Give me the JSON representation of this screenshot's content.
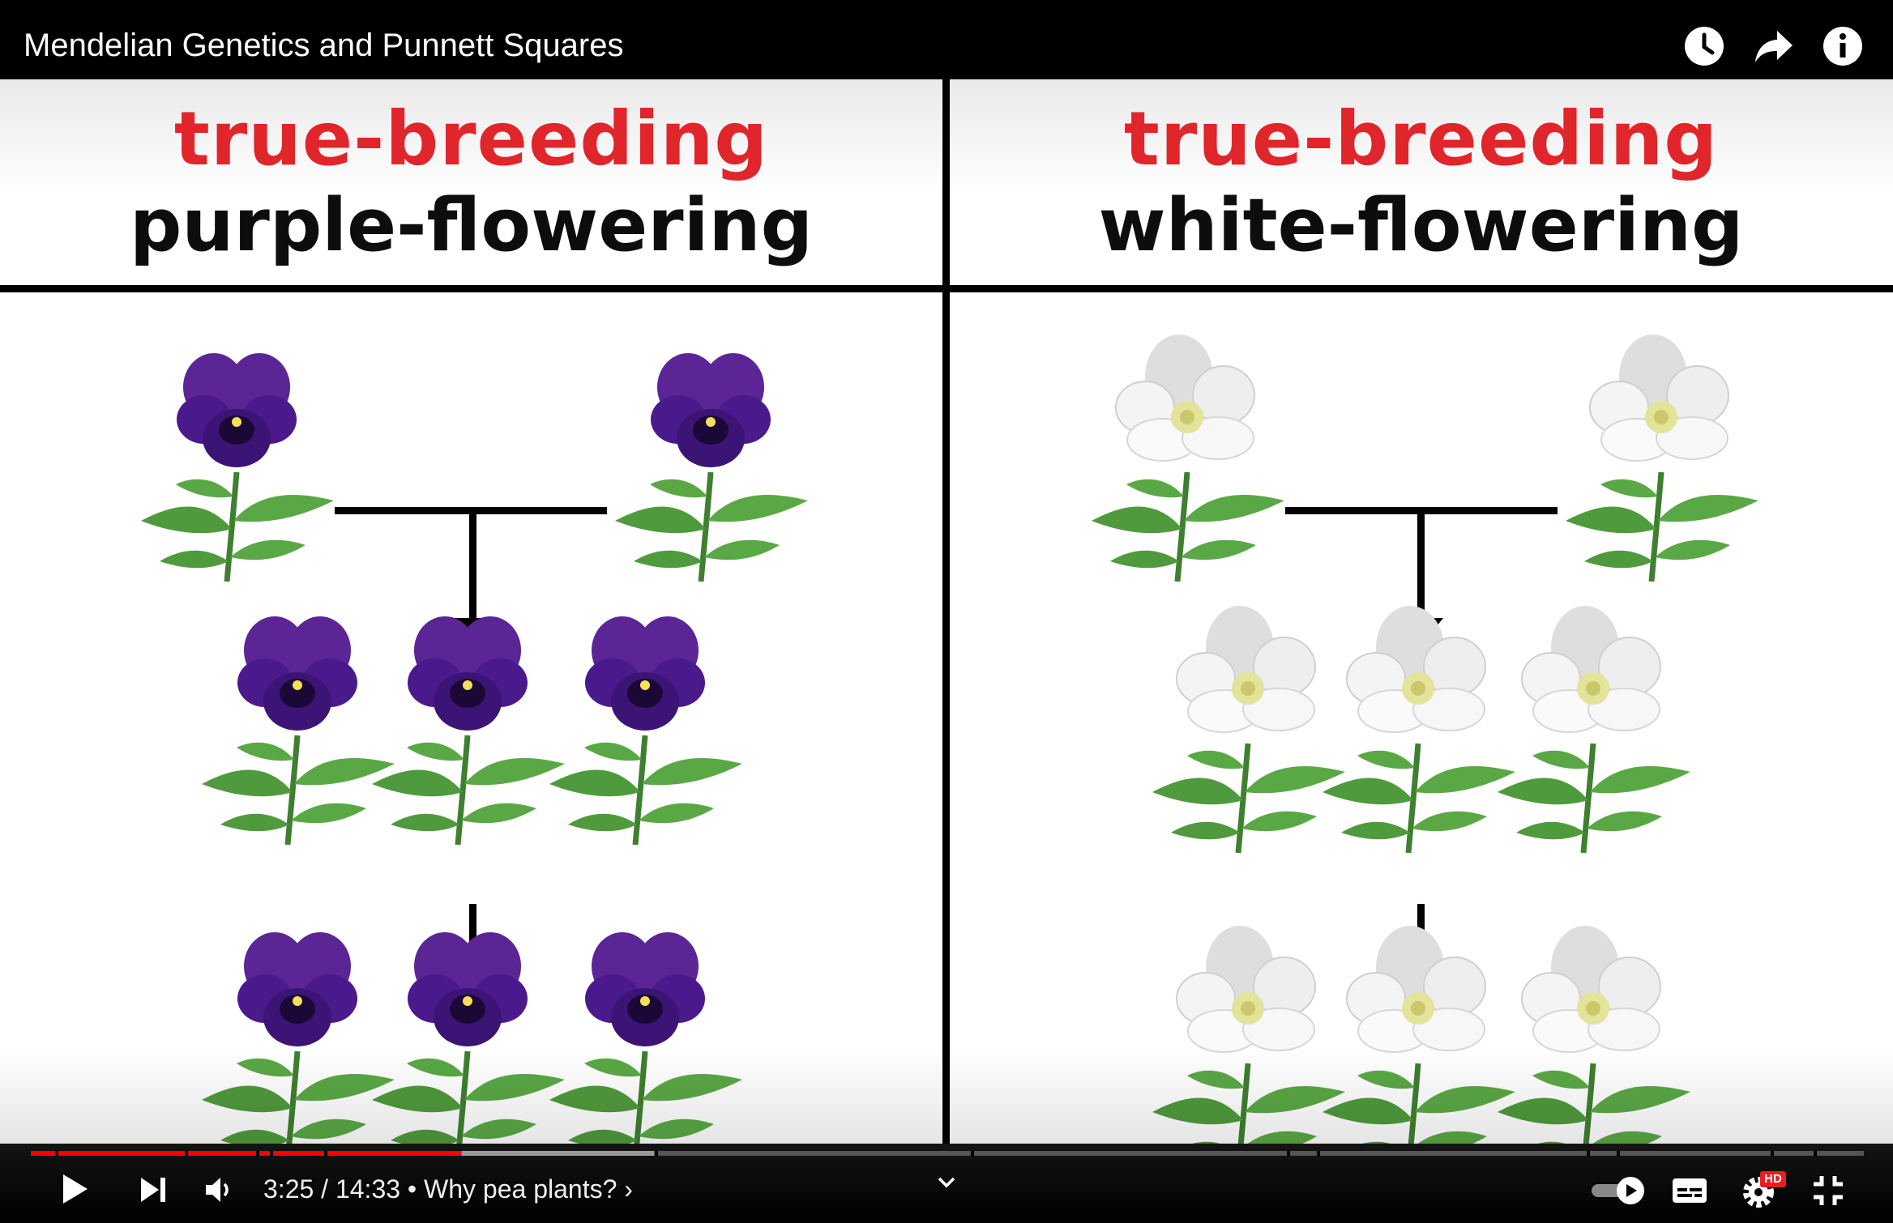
{
  "window": {
    "title": "Mendelian Genetics and Punnett Squares"
  },
  "top_icons": [
    "clock-icon",
    "share-arrow-icon",
    "info-icon"
  ],
  "slide": {
    "left": {
      "line1": "true-breeding",
      "line2": "purple-flowering"
    },
    "right": {
      "line1": "true-breeding",
      "line2": "white-flowering"
    },
    "colors": {
      "accent_red": "#e0252b",
      "purple_flower": "#4a1a8c",
      "white_flower": "#f2f2f2",
      "leaf_green": "#4f9a3c"
    }
  },
  "player": {
    "current_time": "3:25",
    "separator": "/",
    "duration": "14:33",
    "chapter_bullet": "•",
    "chapter": "Why pea plants?",
    "chapter_chevron": "›",
    "progress_played_fraction": 0.235,
    "progress_buffered_fraction": 0.34,
    "accent": "#ff0000",
    "quality_badge": "HD",
    "icons": [
      "play-icon",
      "next-icon",
      "volume-icon",
      "chevron-down-icon",
      "autoplay-toggle-icon",
      "subtitles-icon",
      "settings-gear-icon",
      "exit-fullscreen-icon"
    ]
  }
}
